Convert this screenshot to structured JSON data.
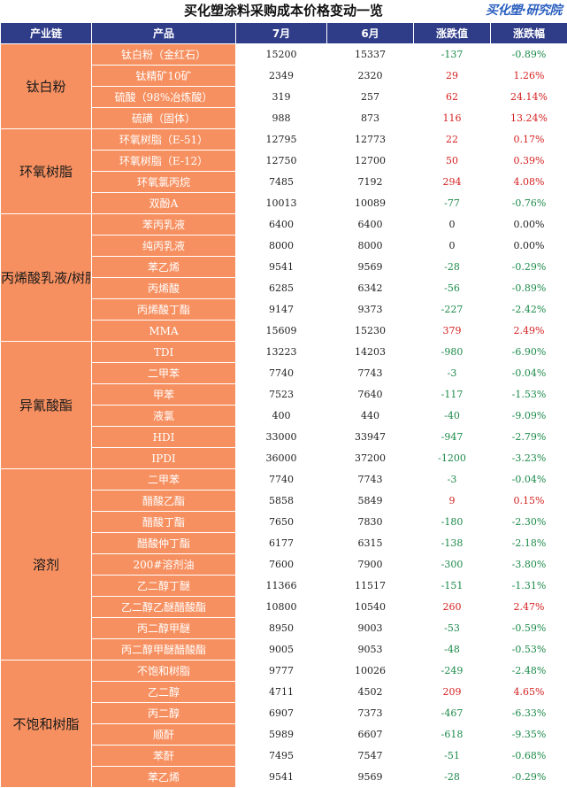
{
  "title": "买化塑涂料采购成本价格变动一览",
  "logo": "买化塑·研究院",
  "headers": [
    "产业链",
    "产品",
    "7月",
    "6月",
    "涨跌值",
    "涨跌幅"
  ],
  "groups": [
    {
      "category": "钛白粉",
      "rows": [
        {
          "product": "钛白粉（金红石）",
          "jul": "15200",
          "jun": "15337",
          "change": "-137",
          "pct": "-0.89%"
        },
        {
          "product": "钛精矿10矿",
          "jul": "2349",
          "jun": "2320",
          "change": "29",
          "pct": "1.26%"
        },
        {
          "product": "硫酸（98%冶炼酸）",
          "jul": "319",
          "jun": "257",
          "change": "62",
          "pct": "24.14%"
        },
        {
          "product": "硫磺（固体）",
          "jul": "988",
          "jun": "873",
          "change": "116",
          "pct": "13.24%"
        }
      ]
    },
    {
      "category": "环氧树脂",
      "rows": [
        {
          "product": "环氧树脂（E-51）",
          "jul": "12795",
          "jun": "12773",
          "change": "22",
          "pct": "0.17%"
        },
        {
          "product": "环氧树脂（E-12）",
          "jul": "12750",
          "jun": "12700",
          "change": "50",
          "pct": "0.39%"
        },
        {
          "product": "环氧氯丙烷",
          "jul": "7485",
          "jun": "7192",
          "change": "294",
          "pct": "4.08%"
        },
        {
          "product": "双酚A",
          "jul": "10013",
          "jun": "10089",
          "change": "-77",
          "pct": "-0.76%"
        }
      ]
    },
    {
      "category": "丙烯酸乳液/树脂",
      "rows": [
        {
          "product": "苯丙乳液",
          "jul": "6400",
          "jun": "6400",
          "change": "0",
          "pct": "0.00%"
        },
        {
          "product": "纯丙乳液",
          "jul": "8000",
          "jun": "8000",
          "change": "0",
          "pct": "0.00%"
        },
        {
          "product": "苯乙烯",
          "jul": "9541",
          "jun": "9569",
          "change": "-28",
          "pct": "-0.29%"
        },
        {
          "product": "丙烯酸",
          "jul": "6285",
          "jun": "6342",
          "change": "-56",
          "pct": "-0.89%"
        },
        {
          "product": "丙烯酸丁酯",
          "jul": "9147",
          "jun": "9373",
          "change": "-227",
          "pct": "-2.42%"
        },
        {
          "product": "MMA",
          "jul": "15609",
          "jun": "15230",
          "change": "379",
          "pct": "2.49%"
        }
      ]
    },
    {
      "category": "异氰酸酯",
      "rows": [
        {
          "product": "TDI",
          "jul": "13223",
          "jun": "14203",
          "change": "-980",
          "pct": "-6.90%"
        },
        {
          "product": "二甲苯",
          "jul": "7740",
          "jun": "7743",
          "change": "-3",
          "pct": "-0.04%"
        },
        {
          "product": "甲苯",
          "jul": "7523",
          "jun": "7640",
          "change": "-117",
          "pct": "-1.53%"
        },
        {
          "product": "液氯",
          "jul": "400",
          "jun": "440",
          "change": "-40",
          "pct": "-9.09%"
        },
        {
          "product": "HDI",
          "jul": "33000",
          "jun": "33947",
          "change": "-947",
          "pct": "-2.79%"
        },
        {
          "product": "IPDI",
          "jul": "36000",
          "jun": "37200",
          "change": "-1200",
          "pct": "-3.23%"
        }
      ]
    },
    {
      "category": "溶剂",
      "rows": [
        {
          "product": "二甲苯",
          "jul": "7740",
          "jun": "7743",
          "change": "-3",
          "pct": "-0.04%"
        },
        {
          "product": "醋酸乙酯",
          "jul": "5858",
          "jun": "5849",
          "change": "9",
          "pct": "0.15%"
        },
        {
          "product": "醋酸丁酯",
          "jul": "7650",
          "jun": "7830",
          "change": "-180",
          "pct": "-2.30%"
        },
        {
          "product": "醋酸仲丁酯",
          "jul": "6177",
          "jun": "6315",
          "change": "-138",
          "pct": "-2.18%"
        },
        {
          "product": "200#溶剂油",
          "jul": "7600",
          "jun": "7900",
          "change": "-300",
          "pct": "-3.80%"
        },
        {
          "product": "乙二醇丁醚",
          "jul": "11366",
          "jun": "11517",
          "change": "-151",
          "pct": "-1.31%"
        },
        {
          "product": "乙二醇乙醚醋酸酯",
          "jul": "10800",
          "jun": "10540",
          "change": "260",
          "pct": "2.47%"
        },
        {
          "product": "丙二醇甲醚",
          "jul": "8950",
          "jun": "9003",
          "change": "-53",
          "pct": "-0.59%"
        },
        {
          "product": "丙二醇甲醚醋酸酯",
          "jul": "9005",
          "jun": "9053",
          "change": "-48",
          "pct": "-0.53%"
        }
      ]
    },
    {
      "category": "不饱和树脂",
      "rows": [
        {
          "product": "不饱和树脂",
          "jul": "9777",
          "jun": "10026",
          "change": "-249",
          "pct": "-2.48%"
        },
        {
          "product": "乙二醇",
          "jul": "4711",
          "jun": "4502",
          "change": "209",
          "pct": "4.65%"
        },
        {
          "product": "丙二醇",
          "jul": "6907",
          "jun": "7373",
          "change": "-467",
          "pct": "-6.33%"
        },
        {
          "product": "顺酐",
          "jul": "5989",
          "jun": "6607",
          "change": "-618",
          "pct": "-9.35%"
        },
        {
          "product": "苯酐",
          "jul": "7495",
          "jun": "7547",
          "change": "-51",
          "pct": "-0.68%"
        },
        {
          "product": "苯乙烯",
          "jul": "9541",
          "jun": "9569",
          "change": "-28",
          "pct": "-0.29%"
        }
      ]
    }
  ],
  "colors": {
    "header": "#2f3c88",
    "cell": "#f79060",
    "up": "#d42020",
    "down": "#1c8a4a"
  }
}
